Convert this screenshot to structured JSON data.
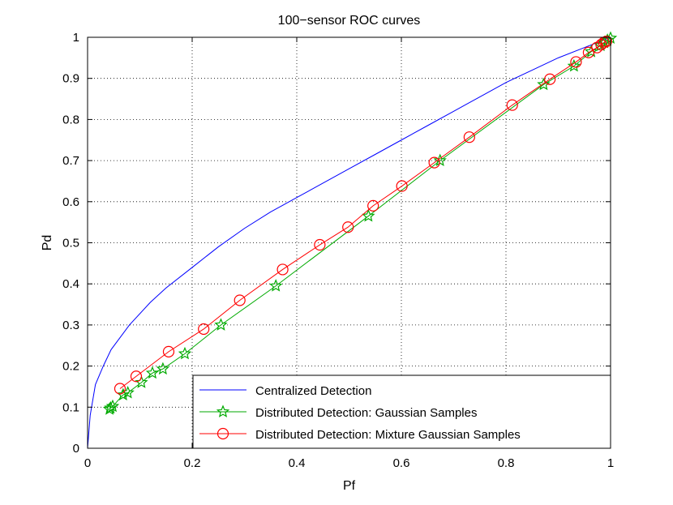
{
  "chart_data": {
    "type": "line",
    "title": "100−sensor ROC curves",
    "xlabel": "Pf",
    "ylabel": "Pd",
    "xlim": [
      0,
      1
    ],
    "ylim": [
      0,
      1
    ],
    "xticks": [
      0,
      0.2,
      0.4,
      0.6,
      0.8,
      1
    ],
    "yticks": [
      0,
      0.1,
      0.2,
      0.3,
      0.4,
      0.5,
      0.6,
      0.7,
      0.8,
      0.9,
      1
    ],
    "xtick_labels": [
      "0",
      "0.2",
      "0.4",
      "0.6",
      "0.8",
      "1"
    ],
    "ytick_labels": [
      "0",
      "0.1",
      "0.2",
      "0.3",
      "0.4",
      "0.5",
      "0.6",
      "0.7",
      "0.8",
      "0.9",
      "1"
    ],
    "grid": true,
    "legend_position": "bottom-right",
    "series": [
      {
        "name": "Centralized Detection",
        "color": "#0000ff",
        "marker": "none",
        "x": [
          0,
          0.005,
          0.015,
          0.03,
          0.045,
          0.08,
          0.12,
          0.15,
          0.2,
          0.25,
          0.3,
          0.35,
          0.4,
          0.45,
          0.5,
          0.55,
          0.6,
          0.65,
          0.7,
          0.75,
          0.8,
          0.85,
          0.9,
          0.95,
          1.0
        ],
        "y": [
          0,
          0.08,
          0.155,
          0.2,
          0.24,
          0.3,
          0.355,
          0.39,
          0.44,
          0.49,
          0.535,
          0.575,
          0.61,
          0.645,
          0.68,
          0.715,
          0.75,
          0.785,
          0.82,
          0.855,
          0.89,
          0.92,
          0.95,
          0.975,
          1.0
        ]
      },
      {
        "name": "Distributed Detection: Gaussian Samples",
        "color": "#00aa00",
        "marker": "star",
        "x": [
          0.042,
          0.044,
          0.048,
          0.068,
          0.077,
          0.103,
          0.124,
          0.144,
          0.186,
          0.255,
          0.36,
          0.537,
          0.674,
          0.872,
          0.93,
          0.963,
          0.981,
          0.988,
          0.994,
          1.0
        ],
        "y": [
          0.095,
          0.098,
          0.102,
          0.13,
          0.135,
          0.16,
          0.183,
          0.193,
          0.23,
          0.3,
          0.395,
          0.565,
          0.7,
          0.885,
          0.93,
          0.965,
          0.98,
          0.987,
          0.993,
          0.998
        ]
      },
      {
        "name": "Distributed Detection: Mixture Gaussian Samples",
        "color": "#ff0000",
        "marker": "circle",
        "x": [
          0.062,
          0.093,
          0.155,
          0.222,
          0.291,
          0.373,
          0.444,
          0.498,
          0.546,
          0.601,
          0.663,
          0.73,
          0.812,
          0.884,
          0.934,
          0.958,
          0.974,
          0.982,
          0.987,
          0.992
        ],
        "y": [
          0.145,
          0.175,
          0.235,
          0.29,
          0.36,
          0.435,
          0.495,
          0.538,
          0.59,
          0.638,
          0.695,
          0.757,
          0.835,
          0.898,
          0.94,
          0.963,
          0.975,
          0.982,
          0.987,
          0.99
        ]
      }
    ]
  }
}
